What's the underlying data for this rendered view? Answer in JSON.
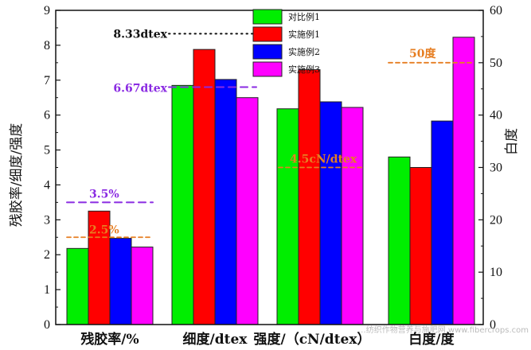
{
  "chart_data": {
    "type": "bar",
    "categories": [
      "残胶率/%",
      "细度/dtex",
      "强度/（cN/dtex）",
      "白度/度"
    ],
    "ylabel": "残胶率/细度/强度",
    "y2label": "白度",
    "ylim": [
      0,
      9
    ],
    "y2lim": [
      0,
      60
    ],
    "yticks": [
      "0",
      "1",
      "2",
      "3",
      "4",
      "5",
      "6",
      "7",
      "8",
      "9"
    ],
    "y2ticks": [
      "0",
      "10",
      "20",
      "30",
      "40",
      "50",
      "60"
    ],
    "series": [
      {
        "name": "对比例1",
        "color": "#00ee00",
        "values": [
          2.18,
          6.85,
          6.18,
          4.8
        ]
      },
      {
        "name": "实施例1",
        "color": "#ff0000",
        "values": [
          3.25,
          7.88,
          7.3,
          4.5
        ]
      },
      {
        "name": "实施例2",
        "color": "#0000ff",
        "values": [
          2.47,
          7.02,
          6.38,
          5.83
        ]
      },
      {
        "name": "实施例3",
        "color": "#ff00ff",
        "values": [
          2.22,
          6.5,
          6.22,
          8.23
        ]
      }
    ],
    "annotations": [
      {
        "text": "3.5%",
        "y": 3.5,
        "color": "#8a2be2"
      },
      {
        "text": "2.5%",
        "y": 2.5,
        "color": "#e67e22"
      },
      {
        "text": "6.67dtex",
        "y": 6.8,
        "color": "#8a2be2"
      },
      {
        "text": "8.33dtex",
        "y": 8.33,
        "color": "#111111"
      },
      {
        "text": "4.5cN/dtex",
        "y": 4.5,
        "color": "#e67e22"
      },
      {
        "text": "50度",
        "y": 50,
        "color": "#e67e22",
        "axis": "right"
      }
    ],
    "legend_position": "top-center",
    "grid": false
  },
  "watermark": "…纺织作物营养与施肥网 www.fibercrops.com"
}
